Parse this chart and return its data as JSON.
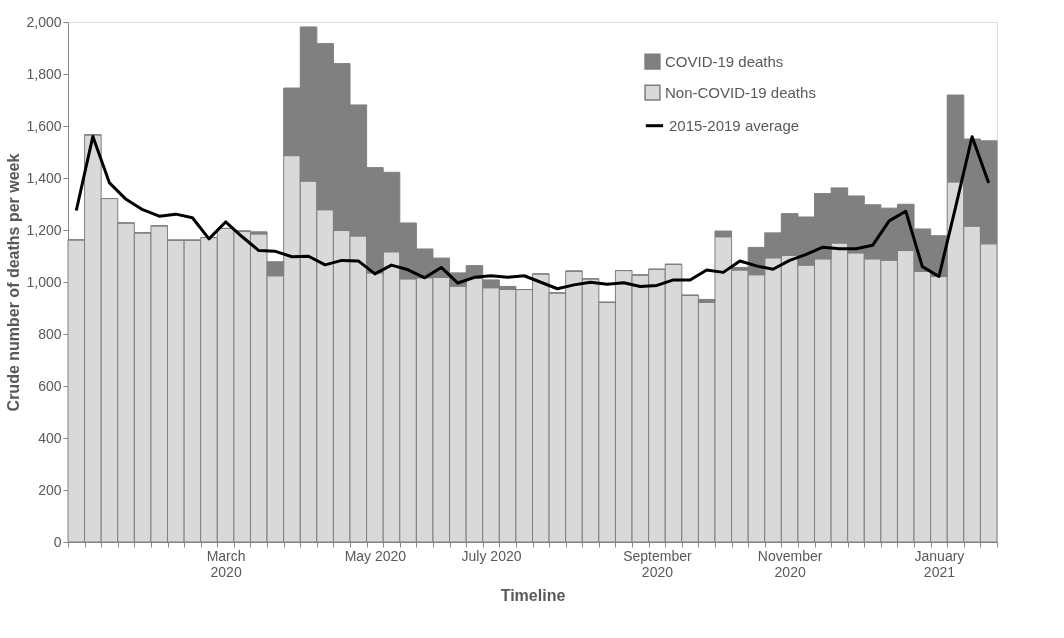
{
  "chart_data": {
    "type": "bar",
    "stacked": true,
    "xlabel": "Timeline",
    "ylabel": "Crude number of deaths per week",
    "categories": [
      null,
      null,
      null,
      null,
      null,
      null,
      null,
      null,
      null,
      "March 2020",
      null,
      null,
      null,
      null,
      null,
      null,
      null,
      null,
      "May 2020",
      null,
      null,
      null,
      null,
      null,
      null,
      "July 2020",
      null,
      null,
      null,
      null,
      null,
      null,
      null,
      null,
      null,
      "September 2020",
      null,
      null,
      null,
      null,
      null,
      null,
      null,
      "November 2020",
      null,
      null,
      null,
      null,
      null,
      null,
      null,
      null,
      "January 2021",
      null,
      null,
      null
    ],
    "series": [
      {
        "name": "Non-COVID-19 deaths",
        "type": "bar",
        "color": "#d9d9d9",
        "values": [
          1162,
          1566,
          1321,
          1227,
          1189,
          1216,
          1161,
          1161,
          1171,
          1206,
          1196,
          1185,
          1024,
          1486,
          1388,
          1278,
          1198,
          1177,
          1035,
          1116,
          1012,
          1016,
          1018,
          984,
          1014,
          978,
          971,
          971,
          1031,
          958,
          1042,
          1012,
          922,
          1044,
          1027,
          1049,
          1068,
          949,
          922,
          1174,
          1046,
          1028,
          1093,
          1103,
          1065,
          1089,
          1150,
          1112,
          1089,
          1084,
          1121,
          1041,
          1021,
          1385,
          1215,
          1147
        ]
      },
      {
        "name": "COVID-19 deaths",
        "type": "bar",
        "color": "#808080",
        "values": [
          0,
          0,
          0,
          0,
          0,
          0,
          0,
          0,
          0,
          0,
          0,
          8,
          54,
          260,
          593,
          639,
          642,
          504,
          405,
          306,
          215,
          111,
          74,
          51,
          49,
          30,
          12,
          0,
          0,
          0,
          0,
          0,
          0,
          0,
          0,
          0,
          0,
          0,
          11,
          22,
          10,
          105,
          96,
          160,
          185,
          251,
          212,
          219,
          208,
          200,
          178,
          163,
          157,
          334,
          335,
          396
        ]
      },
      {
        "name": "2015-2019 average",
        "type": "line",
        "color": "#000000",
        "values": [
          1275,
          1560,
          1381,
          1318,
          1278,
          1253,
          1261,
          1247,
          1166,
          1231,
          1174,
          1121,
          1118,
          1097,
          1099,
          1066,
          1083,
          1081,
          1031,
          1065,
          1047,
          1016,
          1056,
          996,
          1018,
          1024,
          1018,
          1024,
          999,
          974,
          989,
          999,
          991,
          997,
          983,
          987,
          1008,
          1008,
          1046,
          1037,
          1081,
          1062,
          1049,
          1083,
          1106,
          1134,
          1128,
          1128,
          1141,
          1235,
          1272,
          1059,
          1021,
          1287,
          1559,
          1381
        ]
      }
    ],
    "ylim": [
      0,
      2000
    ],
    "yticks": [
      0,
      200,
      400,
      600,
      800,
      {
        "value": 1000,
        "label": "1,000"
      },
      {
        "value": 1200,
        "label": "1,200"
      },
      {
        "value": 1400,
        "label": "1,400"
      },
      {
        "value": 1600,
        "label": "1,600"
      },
      {
        "value": 1800,
        "label": "1,800"
      },
      {
        "value": 2000,
        "label": "2,000"
      }
    ],
    "grid": false,
    "legend": "top right"
  }
}
